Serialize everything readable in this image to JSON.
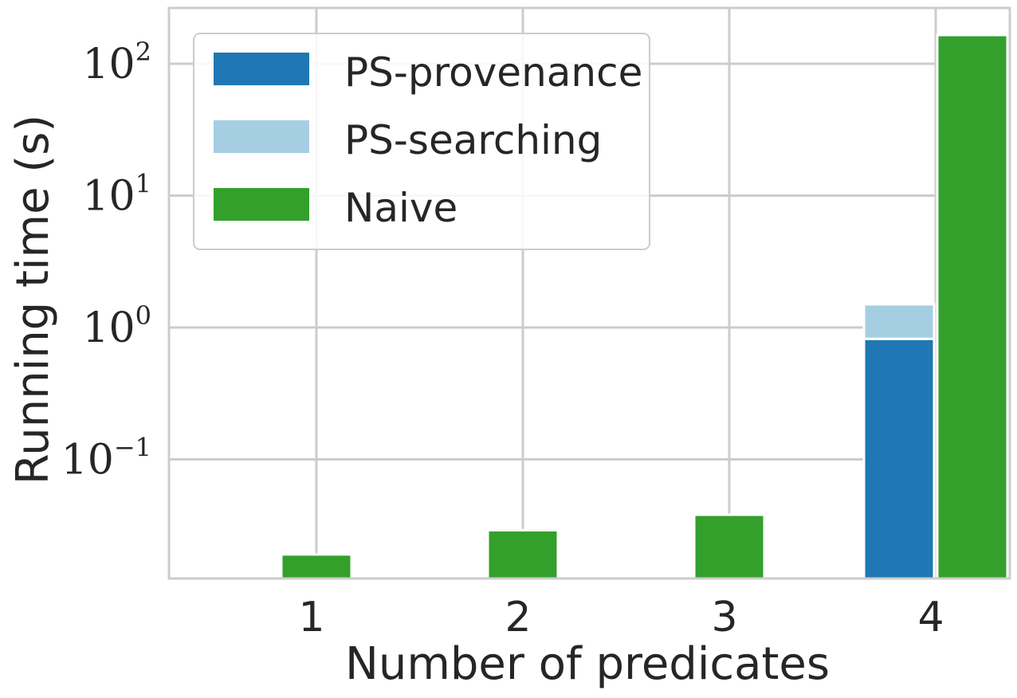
{
  "chart_data": {
    "type": "bar",
    "xlabel": "Number of predicates",
    "ylabel": "Running time (s)",
    "yscale": "log",
    "ylim": [
      0.01,
      250
    ],
    "categories": [
      "1",
      "2",
      "3",
      "4"
    ],
    "y_ticks": [
      {
        "value": 0.1,
        "base": "10",
        "exp": "−1"
      },
      {
        "value": 1,
        "base": "10",
        "exp": "0"
      },
      {
        "value": 10,
        "base": "10",
        "exp": "1"
      },
      {
        "value": 100,
        "base": "10",
        "exp": "2"
      }
    ],
    "series": [
      {
        "name": "PS-provenance",
        "color": "#1f77b4",
        "values": [
          null,
          null,
          null,
          0.82
        ],
        "stack": "ps"
      },
      {
        "name": "PS-searching",
        "color": "#a6cee3",
        "values": [
          null,
          null,
          null,
          0.68
        ],
        "stack": "ps"
      },
      {
        "name": "Naive",
        "color": "#33a02c",
        "values": [
          0.019,
          0.029,
          0.038,
          165
        ]
      }
    ],
    "grid": true,
    "legend_position": "top-left"
  }
}
